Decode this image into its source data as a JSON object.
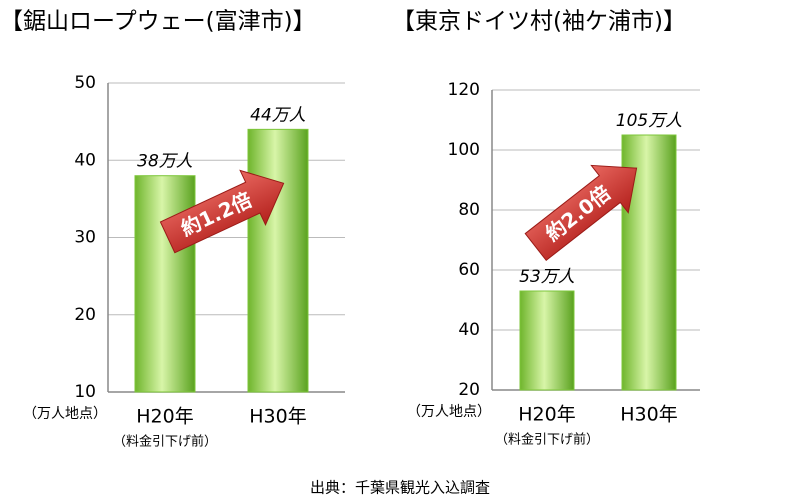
{
  "chart_data": [
    {
      "type": "bar",
      "title": "【鋸山ロープウェー(富津市)】",
      "categories": [
        "H20年",
        "H30年"
      ],
      "x_note": "（料金引下げ前）",
      "y_label": "（万人地点）",
      "values": [
        38,
        44
      ],
      "value_labels": [
        "38万人",
        "44万人"
      ],
      "color": "#7cc639",
      "ylim": [
        10,
        50
      ],
      "yticks": [
        10,
        20,
        30,
        40,
        50
      ],
      "grid": true,
      "annotation": "約1.2倍"
    },
    {
      "type": "bar",
      "title": "【東京ドイツ村(袖ケ浦市)】",
      "categories": [
        "H20年",
        "H30年"
      ],
      "x_note": "（料金引下げ前）",
      "y_label": "（万人地点）",
      "values": [
        53,
        105
      ],
      "value_labels": [
        "53万人",
        "105万人"
      ],
      "color": "#7cc639",
      "ylim": [
        20,
        120
      ],
      "yticks": [
        20,
        40,
        60,
        80,
        100,
        120
      ],
      "grid": true,
      "annotation": "約2.0倍"
    }
  ],
  "source": "出典：千葉県観光入込調査"
}
